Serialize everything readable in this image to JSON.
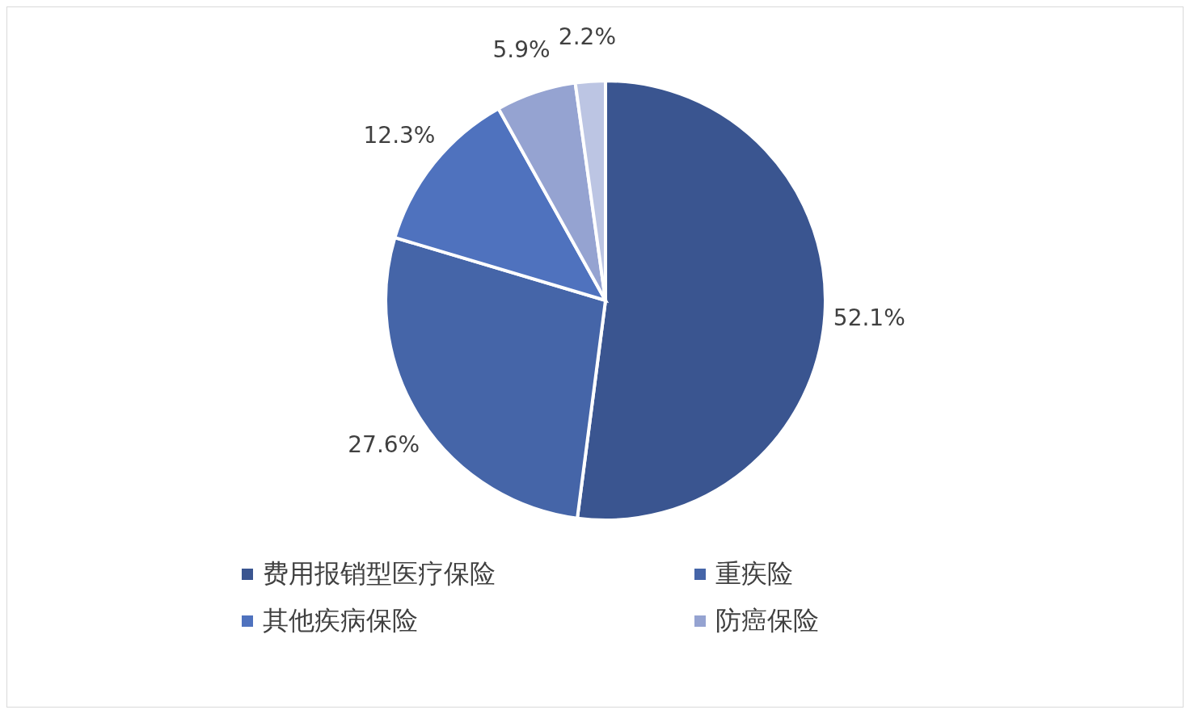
{
  "chart_data": {
    "type": "pie",
    "categories": [
      "费用报销型医疗保险",
      "重疾险",
      "其他疾病保险",
      "防癌保险",
      null
    ],
    "values": [
      52.1,
      27.6,
      12.3,
      5.9,
      2.2
    ],
    "value_labels": [
      "52.1%",
      "27.6%",
      "12.3%",
      "5.9%",
      "2.2%"
    ],
    "colors": [
      "#3a5590",
      "#4565a8",
      "#4f72be",
      "#95a3d1",
      "#bcc5e3"
    ],
    "legend": "bottom"
  }
}
